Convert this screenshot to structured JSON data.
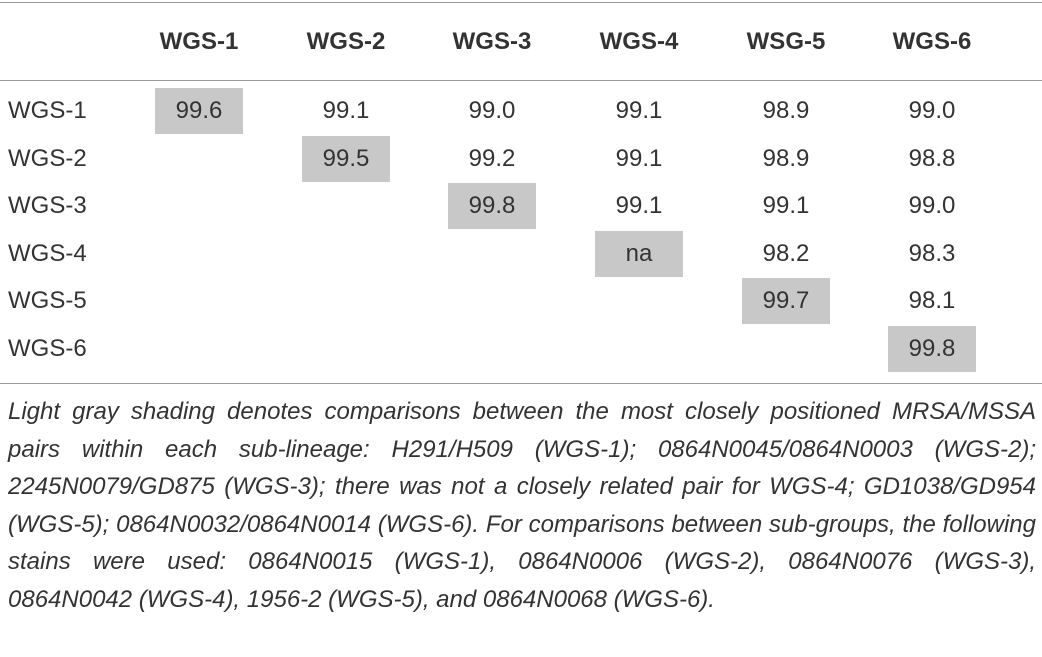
{
  "table": {
    "columns": [
      "WGS-1",
      "WGS-2",
      "WGS-3",
      "WGS-4",
      "WSG-5",
      "WGS-6"
    ],
    "rows": [
      {
        "label": "WGS-1",
        "values": [
          "99.6",
          "99.1",
          "99.0",
          "99.1",
          "98.9",
          "99.0"
        ]
      },
      {
        "label": "WGS-2",
        "values": [
          "99.5",
          "99.2",
          "99.1",
          "98.9",
          "98.8"
        ]
      },
      {
        "label": "WGS-3",
        "values": [
          "99.8",
          "99.1",
          "99.1",
          "99.0"
        ]
      },
      {
        "label": "WGS-4",
        "values": [
          "na",
          "98.2",
          "98.3"
        ]
      },
      {
        "label": "WGS-5",
        "values": [
          "99.7",
          "98.1"
        ]
      },
      {
        "label": "WGS-6",
        "values": [
          "99.8"
        ]
      }
    ],
    "footnote": "Light gray shading denotes comparisons between the most closely positioned MRSA/MSSA pairs within each sub-lineage: H291/H509 (WGS-1); 0864N0045/0864N0003 (WGS-2); 2245N0079/GD875 (WGS-3); there was not a closely related pair for WGS-4; GD1038/GD954 (WGS-5); 0864N0032/0864N0014 (WGS-6). For comparisons between sub-groups, the following stains were used: 0864N0015 (WGS-1), 0864N0006 (WGS-2), 0864N0076 (WGS-3), 0864N0042 (WGS-4), 1956-2 (WGS-5), and 0864N0068 (WGS-6)."
  }
}
